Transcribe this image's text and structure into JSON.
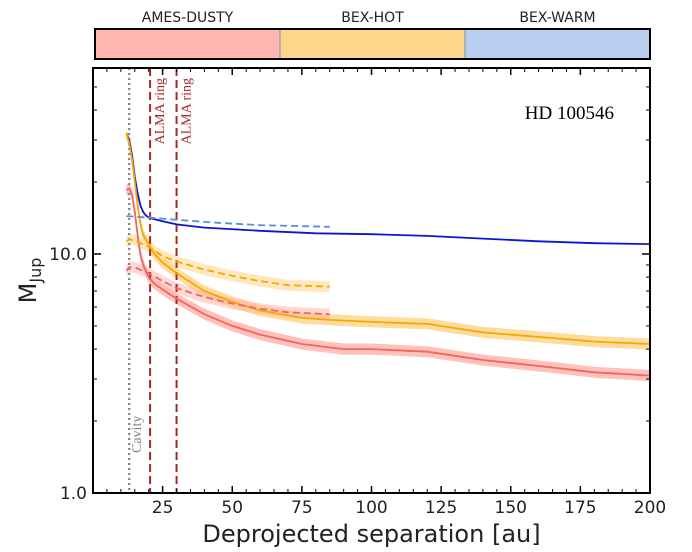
{
  "colorbar": {
    "segments": [
      {
        "label": "AMES-DUSTY",
        "color": "#ffb6ae"
      },
      {
        "label": "BEX-HOT",
        "color": "#ffd58c"
      },
      {
        "label": "BEX-WARM",
        "color": "#b9cff2"
      }
    ]
  },
  "chart_data": {
    "type": "line",
    "title": "HD 100546",
    "xlabel": "Deprojected separation [au]",
    "ylabel_main": "M",
    "ylabel_sub": "Jup",
    "xlim": [
      0,
      200
    ],
    "ylim": [
      1,
      60
    ],
    "yscale": "log",
    "x_ticks": [
      25,
      50,
      75,
      100,
      125,
      150,
      175,
      200
    ],
    "x_tick_labels": [
      "25",
      "50",
      "75",
      "100",
      "125",
      "150",
      "175",
      "200"
    ],
    "y_ticks": [
      1,
      10
    ],
    "y_tick_labels": [
      "1.0",
      "10.0"
    ],
    "grid": false,
    "vlines": [
      {
        "x": 13,
        "label": "Cavity",
        "style": "dotted",
        "color": "#808080"
      },
      {
        "x": 20.5,
        "label": "ALMA ring",
        "style": "dashed",
        "color": "#a52a2a"
      },
      {
        "x": 30,
        "label": "ALMA ring",
        "style": "dashed",
        "color": "#a52a2a"
      }
    ],
    "series": [
      {
        "model": "BEX-WARM",
        "style": "solid",
        "color": "#0b14d6",
        "band": false,
        "x": [
          12,
          13,
          14,
          15,
          16,
          17,
          18,
          19,
          20,
          22,
          25,
          30,
          40,
          60,
          80,
          100,
          120,
          140,
          160,
          180,
          200
        ],
        "y": [
          32,
          30,
          26,
          21,
          18,
          16,
          15,
          14.5,
          14.2,
          14.0,
          13.7,
          13.3,
          12.9,
          12.5,
          12.2,
          12.1,
          11.9,
          11.6,
          11.3,
          11.1,
          11.0
        ]
      },
      {
        "model": "BEX-WARM",
        "style": "dashed",
        "color": "#5a8ede",
        "band": false,
        "x": [
          12,
          20,
          30,
          45,
          60,
          85
        ],
        "y": [
          14.4,
          14.2,
          13.9,
          13.5,
          13.2,
          13.0
        ]
      },
      {
        "model": "BEX-HOT",
        "style": "solid",
        "color": "#f6a800",
        "band": true,
        "band_color": "#ffd58c",
        "x": [
          12,
          13,
          14,
          15,
          16,
          17,
          18,
          20,
          22,
          25,
          30,
          40,
          50,
          60,
          75,
          85,
          100,
          120,
          140,
          160,
          180,
          200
        ],
        "y": [
          32,
          29,
          25,
          20,
          16,
          13.5,
          12,
          11,
          10,
          9.2,
          8.3,
          7.0,
          6.3,
          5.8,
          5.4,
          5.3,
          5.2,
          5.1,
          4.7,
          4.5,
          4.3,
          4.2
        ]
      },
      {
        "model": "BEX-HOT",
        "style": "dashed",
        "color": "#f6a800",
        "band": true,
        "band_color": "#ffd58c",
        "x": [
          12,
          13,
          15,
          20,
          25,
          30,
          40,
          50,
          60,
          70,
          85
        ],
        "y": [
          11.3,
          11.5,
          11.4,
          10.7,
          9.8,
          9.3,
          8.6,
          8.1,
          7.7,
          7.4,
          7.3
        ]
      },
      {
        "model": "AMES-DUSTY",
        "style": "solid",
        "color": "#f26464",
        "band": true,
        "band_color": "#ffb6ae",
        "x": [
          12,
          13,
          14,
          15,
          16,
          17,
          18,
          20,
          22,
          25,
          30,
          40,
          50,
          60,
          75,
          90,
          100,
          120,
          140,
          160,
          180,
          200
        ],
        "y": [
          18.5,
          18.8,
          17.8,
          15,
          12,
          10,
          9,
          8,
          7.5,
          7.1,
          6.5,
          5.6,
          5.0,
          4.6,
          4.2,
          4.0,
          4.0,
          3.9,
          3.6,
          3.4,
          3.2,
          3.1
        ]
      },
      {
        "model": "AMES-DUSTY",
        "style": "dashed",
        "color": "#f26464",
        "band": true,
        "band_color": "#ffb6ae",
        "x": [
          12,
          13,
          15,
          20,
          25,
          30,
          40,
          50,
          60,
          70,
          85
        ],
        "y": [
          8.5,
          8.8,
          8.8,
          8.3,
          7.7,
          7.2,
          6.6,
          6.2,
          5.9,
          5.7,
          5.6
        ]
      }
    ]
  }
}
